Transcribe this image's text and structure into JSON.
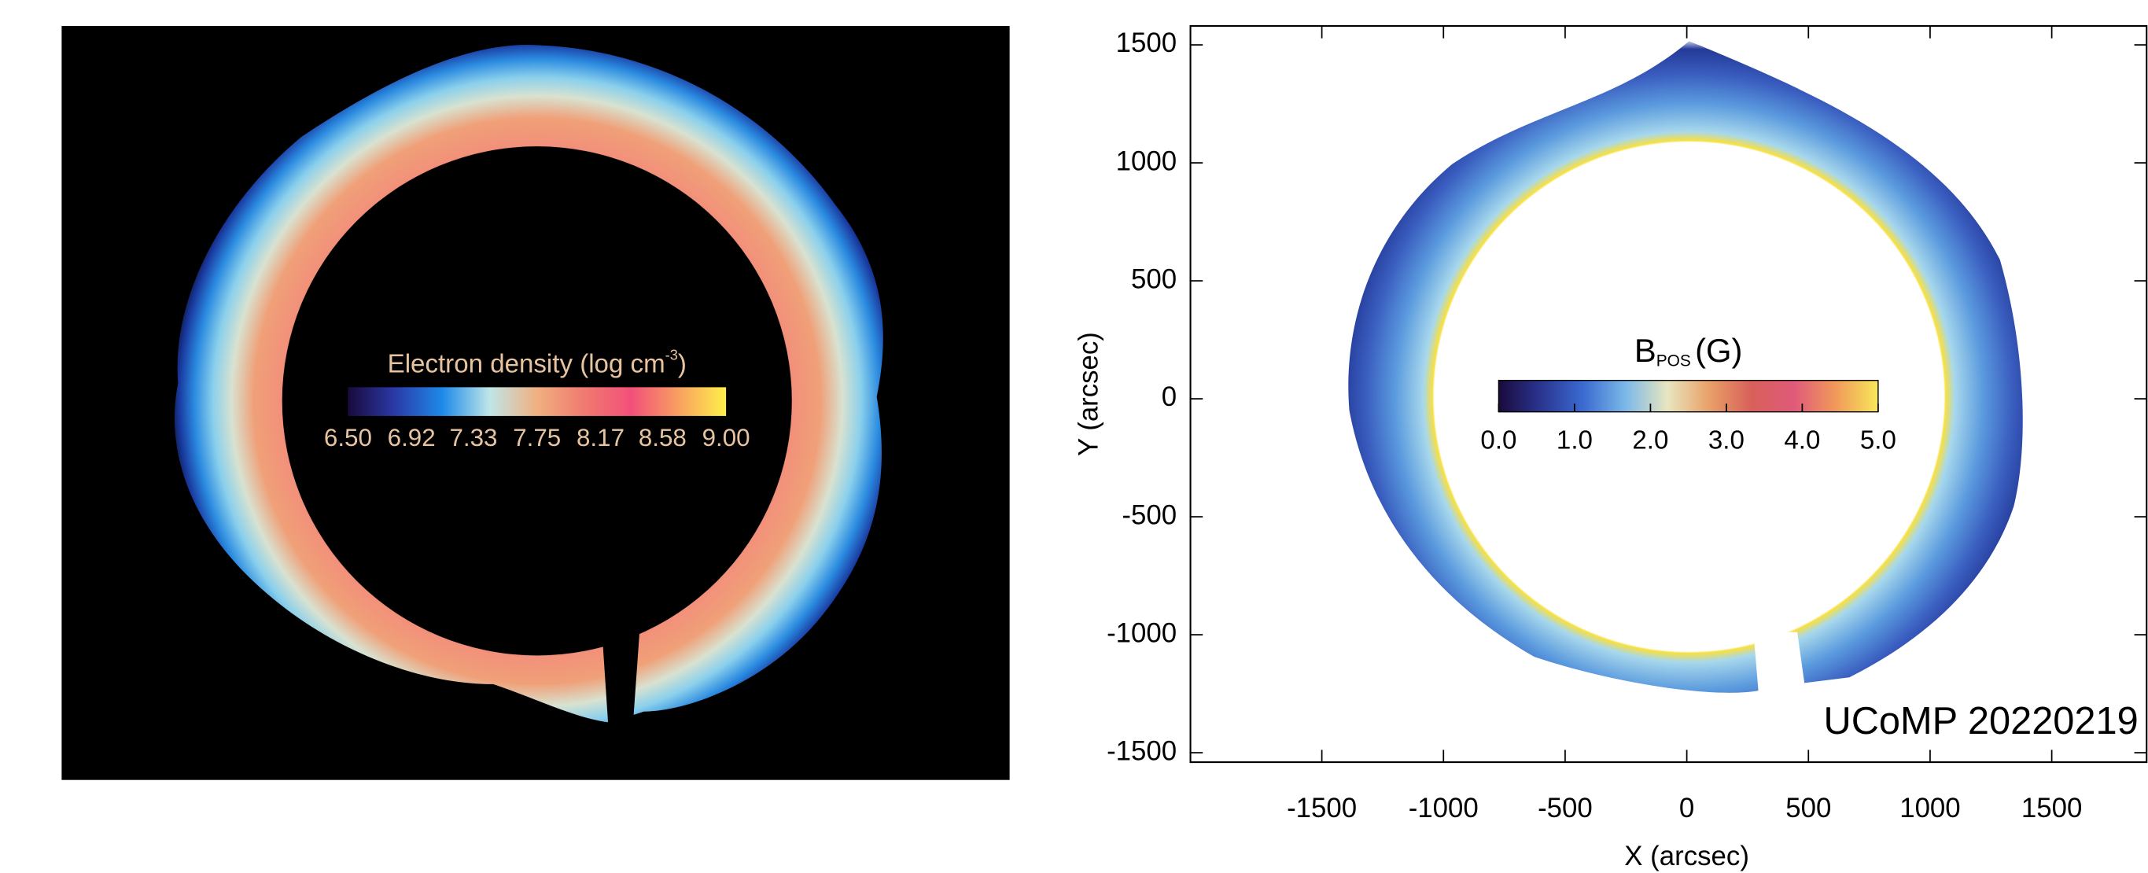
{
  "chart_data": [
    {
      "type": "image",
      "colorbar": {
        "title": "Electron density (log cm",
        "title_superscript": "-3",
        "title_end": ")",
        "lim": [
          6.5,
          9
        ],
        "ticks": [
          {
            "value": 6.5,
            "label": "6.50"
          },
          6.92,
          7.33,
          7.75,
          8.17,
          8.58,
          {
            "value": 9,
            "label": "9.00"
          }
        ],
        "colormap": [
          "#1a0a3c",
          "#2a3aa8",
          "#1e8ae8",
          "#bfe6e8",
          "#f0b080",
          "#f07a70",
          "#f2507a",
          "#f8a060",
          "#fff04a"
        ]
      }
    },
    {
      "type": "image",
      "xlabel": "X (arcsec)",
      "ylabel": "Y (arcsec)",
      "xlim": [
        -2040,
        1890
      ],
      "ylim": [
        -1540,
        1580
      ],
      "xticks": [
        -1500,
        -1000,
        -500,
        0,
        500,
        1000,
        1500
      ],
      "yticks": [
        -1500,
        -1000,
        -500,
        0,
        500,
        1000,
        1500
      ],
      "annotation": "UCoMP 20220219",
      "colorbar": {
        "title": "B",
        "title_subscript": "POS",
        "title_end": "(G)",
        "lim": [
          0,
          5
        ],
        "ticks": [
          {
            "value": 0,
            "label": "0.0"
          },
          {
            "value": 1,
            "label": "1.0"
          },
          {
            "value": 2,
            "label": "2.0"
          },
          {
            "value": 3,
            "label": "3.0"
          },
          {
            "value": 4,
            "label": "4.0"
          },
          {
            "value": 5,
            "label": "5.0"
          }
        ],
        "colormap": [
          "#1a0a3c",
          "#2a3590",
          "#3a6ad0",
          "#7ab8e8",
          "#e8e6c0",
          "#e8a068",
          "#d8605a",
          "#e05a7a",
          "#f09a5a",
          "#f8e85a"
        ]
      }
    }
  ]
}
